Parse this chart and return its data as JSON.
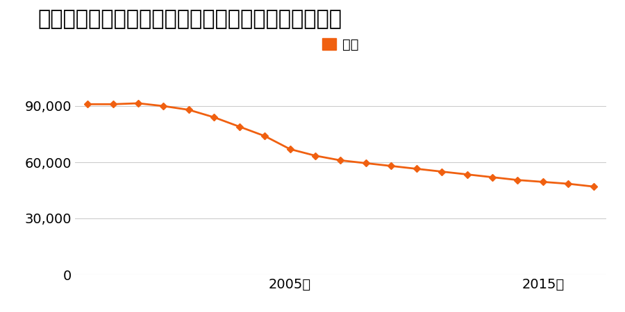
{
  "title": "山口県岩国市牛野谷町２丁目１８０番１外の地価推移",
  "legend_label": "価格",
  "years": [
    1997,
    1998,
    1999,
    2000,
    2001,
    2002,
    2003,
    2004,
    2005,
    2006,
    2007,
    2008,
    2009,
    2010,
    2011,
    2012,
    2013,
    2014,
    2015,
    2016,
    2017
  ],
  "values": [
    91000,
    91000,
    91500,
    90000,
    88000,
    84000,
    79000,
    74000,
    67000,
    63500,
    61000,
    59500,
    58000,
    56500,
    55000,
    53500,
    52000,
    50500,
    49500,
    48500,
    47000
  ],
  "line_color": "#f06010",
  "marker_color": "#f06010",
  "background_color": "#ffffff",
  "grid_color": "#cccccc",
  "ylim": [
    0,
    100000
  ],
  "yticks": [
    0,
    30000,
    60000,
    90000
  ],
  "xtick_labels": [
    "2005年",
    "2015年"
  ],
  "xtick_positions": [
    2005,
    2015
  ],
  "title_fontsize": 22,
  "legend_fontsize": 14,
  "tick_fontsize": 14,
  "line_width": 2.0,
  "marker_size": 5
}
